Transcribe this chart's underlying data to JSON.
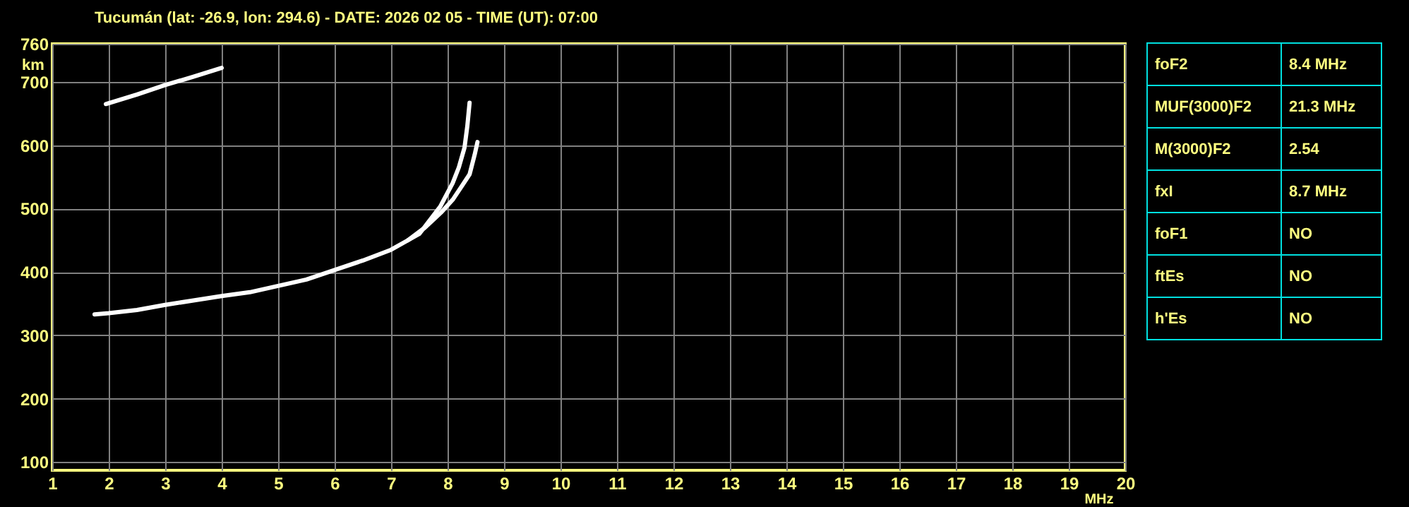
{
  "chart_data": [
    {
      "type": "line",
      "title": "Tucumán (lat: -26.9, lon: 294.6) - DATE: 2026 02 05 - TIME (UT): 07:00",
      "xlabel": "MHz",
      "ylabel": "km",
      "xlim": [
        1,
        20
      ],
      "ylim": [
        87,
        760
      ],
      "xticks": [
        1,
        2,
        3,
        4,
        5,
        6,
        7,
        8,
        9,
        10,
        11,
        12,
        13,
        14,
        15,
        16,
        17,
        18,
        19,
        20
      ],
      "yticks": [
        100,
        200,
        300,
        400,
        500,
        600,
        700,
        760
      ],
      "grid": true,
      "marker": "none",
      "line_style": "solid",
      "series": [
        {
          "color": "#ffffff",
          "x": [
            1.75,
            2,
            2.5,
            3,
            3.5,
            4,
            4.5,
            5,
            5.5,
            6,
            6.5,
            7,
            7.5,
            7.87,
            8.09,
            8.2,
            8.3,
            8.35,
            8.39
          ],
          "values": [
            333,
            335,
            340,
            348,
            355,
            362,
            368,
            378,
            388,
            403,
            418,
            435,
            460,
            503,
            540,
            565,
            596,
            630,
            667
          ]
        },
        {
          "color": "#ffffff",
          "x": [
            7.3,
            7.6,
            7.9,
            8.1,
            8.25,
            8.39,
            8.48,
            8.53
          ],
          "values": [
            450,
            470,
            495,
            515,
            535,
            554,
            585,
            605
          ]
        },
        {
          "color": "#ffffff",
          "x": [
            1.95,
            2.5,
            3,
            3.5,
            4
          ],
          "values": [
            665,
            680,
            695,
            708,
            722
          ]
        }
      ]
    },
    {
      "type": "other",
      "categories": [
        "foF2",
        "MUF(3000)F2",
        "M(3000)F2",
        "fxI",
        "foF1",
        "ftEs",
        "h'Es"
      ],
      "value_labels": [
        "8.4 MHz",
        "21.3 MHz",
        "2.54",
        "8.7 MHz",
        "NO",
        "NO",
        "NO"
      ]
    }
  ]
}
